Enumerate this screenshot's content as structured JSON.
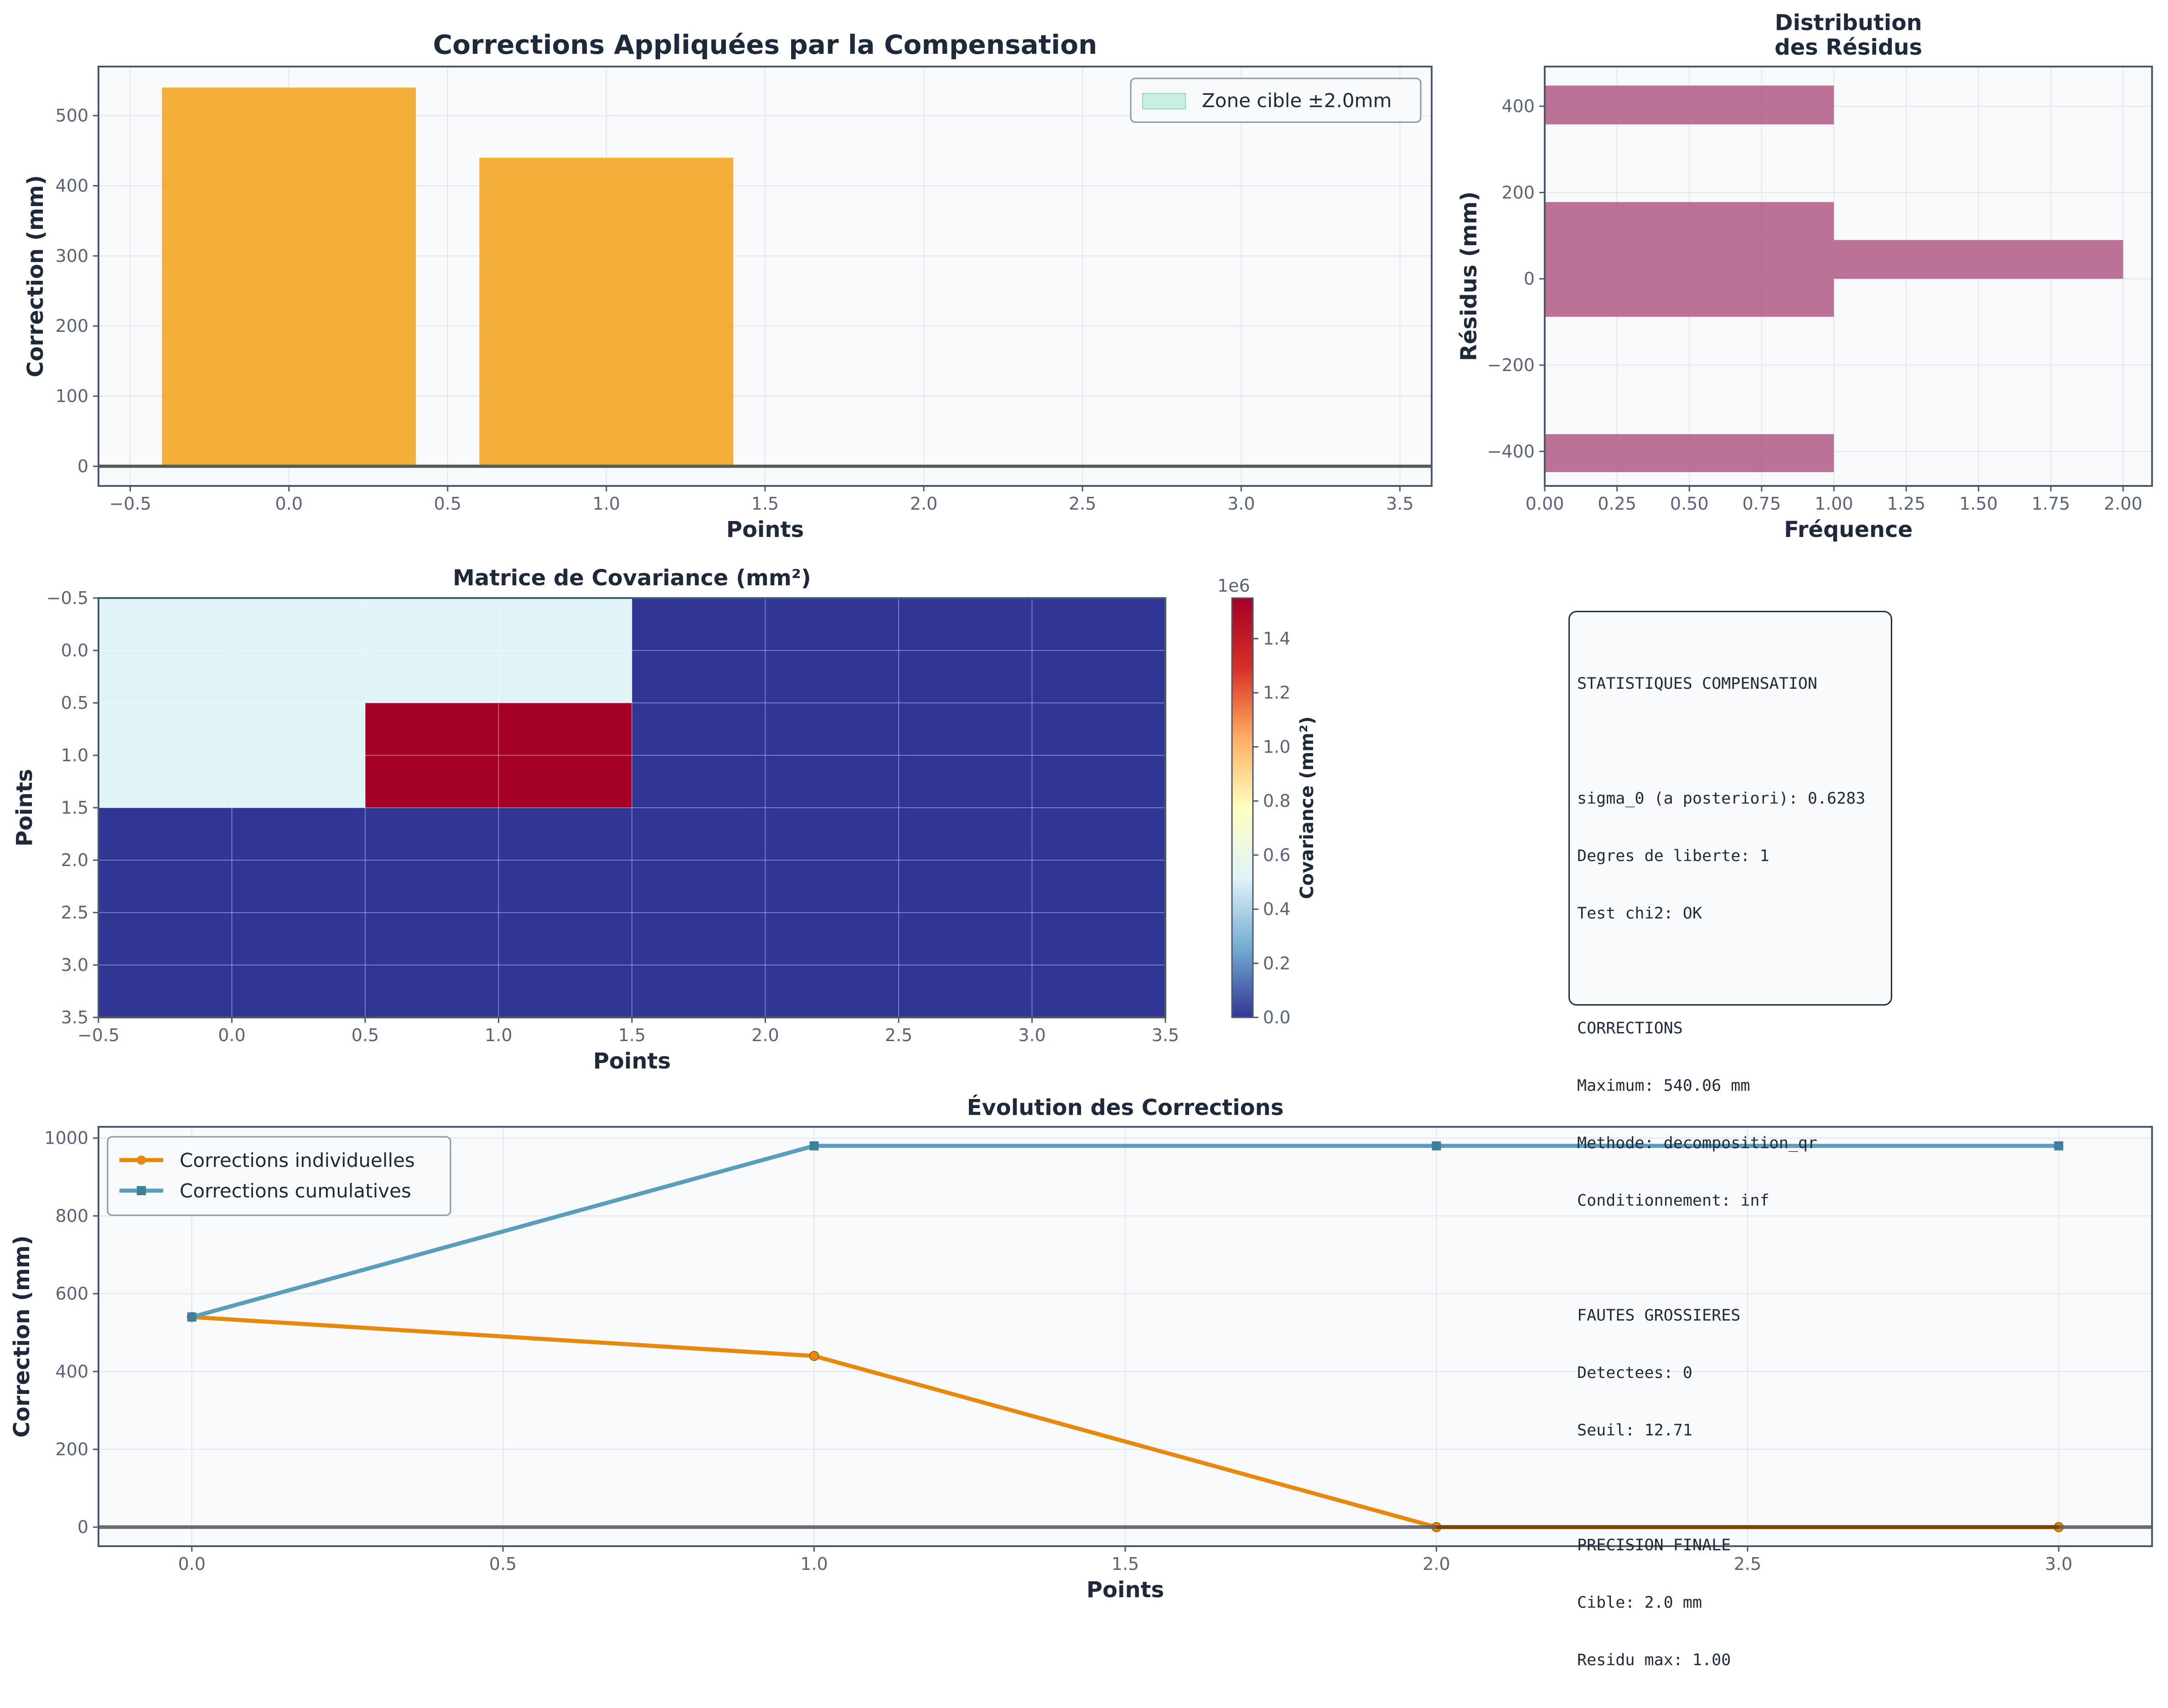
{
  "colors": {
    "bar": "#F3A625",
    "hist": "#B5638C",
    "indiv": "#E8890C",
    "cumul": "#5B9EBC",
    "cmap": [
      "#313695",
      "#74add1",
      "#e0f3f8",
      "#ffffbf",
      "#fdae61",
      "#d73027",
      "#a50026"
    ],
    "zone": "#c9efe1",
    "axes_bg": "#f8fafc",
    "spine": "#4a5a6e"
  },
  "chart_data": [
    {
      "id": "corrections",
      "type": "bar",
      "title": "Corrections Appliquées par la Compensation",
      "xlabel": "Points",
      "ylabel": "Correction (mm)",
      "x": [
        0,
        1,
        2,
        3
      ],
      "values": [
        540.06,
        440.0,
        0.0,
        0.0
      ],
      "xlim": [
        -0.6,
        3.6
      ],
      "ylim": [
        -28,
        570
      ],
      "xticks": [
        -0.5,
        0.0,
        0.5,
        1.0,
        1.5,
        2.0,
        2.5,
        3.0,
        3.5
      ],
      "xtick_labels": [
        "−0.5",
        "0.0",
        "0.5",
        "1.0",
        "1.5",
        "2.0",
        "2.5",
        "3.0",
        "3.5"
      ],
      "yticks": [
        0,
        100,
        200,
        300,
        400,
        500
      ],
      "ytick_labels": [
        "0",
        "100",
        "200",
        "300",
        "400",
        "500"
      ],
      "zone": [
        -2.0,
        2.0
      ],
      "legend": [
        "Zone cible ±2.0mm"
      ],
      "legend_loc": "top-right",
      "grid": true
    },
    {
      "id": "residus",
      "type": "bar",
      "orientation": "horizontal",
      "title": [
        "Distribution",
        "des Résidus"
      ],
      "xlabel": "Fréquence",
      "ylabel": "Résidus (mm)",
      "bins": [
        {
          "from": -448,
          "to": -360,
          "count": 1
        },
        {
          "from": -88,
          "to": 0,
          "count": 1
        },
        {
          "from": 0,
          "to": 90,
          "count": 2
        },
        {
          "from": 90,
          "to": 178,
          "count": 1
        },
        {
          "from": 358,
          "to": 448,
          "count": 1
        }
      ],
      "xlim": [
        0,
        2.1
      ],
      "ylim": [
        -480,
        492
      ],
      "xticks": [
        0,
        0.25,
        0.5,
        0.75,
        1.0,
        1.25,
        1.5,
        1.75,
        2.0
      ],
      "xtick_labels": [
        "0.00",
        "0.25",
        "0.50",
        "0.75",
        "1.00",
        "1.25",
        "1.50",
        "1.75",
        "2.00"
      ],
      "yticks": [
        -400,
        -200,
        0,
        200,
        400
      ],
      "ytick_labels": [
        "−400",
        "−200",
        "0",
        "200",
        "400"
      ],
      "grid": true
    },
    {
      "id": "covariance",
      "type": "heatmap",
      "title": "Matrice de Covariance (mm²)",
      "xlabel": "Points",
      "ylabel": "Points",
      "matrix": [
        [
          520000,
          520000,
          0,
          0
        ],
        [
          520000,
          1550000,
          0,
          0
        ],
        [
          0,
          0,
          0,
          0
        ],
        [
          0,
          0,
          0,
          0
        ]
      ],
      "vmin": 0,
      "vmax": 1550000,
      "ticks": [
        -0.5,
        0.0,
        0.5,
        1.0,
        1.5,
        2.0,
        2.5,
        3.0,
        3.5
      ],
      "tick_labels": [
        "−0.5",
        "0.0",
        "0.5",
        "1.0",
        "1.5",
        "2.0",
        "2.5",
        "3.0",
        "3.5"
      ],
      "colorbar_label": "Covariance (mm²)",
      "colorbar_offset": "1e6",
      "colorbar_ticks": [
        0,
        0.2,
        0.4,
        0.6,
        0.8,
        1.0,
        1.2,
        1.4
      ],
      "colorbar_tick_labels": [
        "0.0",
        "0.2",
        "0.4",
        "0.6",
        "0.8",
        "1.0",
        "1.2",
        "1.4"
      ],
      "grid": true
    },
    {
      "id": "evolution",
      "type": "line",
      "title": "Évolution des Corrections",
      "xlabel": "Points",
      "ylabel": "Correction (mm)",
      "x": [
        0,
        1,
        2,
        3
      ],
      "series": [
        {
          "name": "Corrections individuelles",
          "values": [
            540.06,
            440.0,
            0.0,
            0.0
          ],
          "marker": "circle"
        },
        {
          "name": "Corrections cumulatives",
          "values": [
            540.06,
            980.06,
            980.06,
            980.06
          ],
          "marker": "square"
        }
      ],
      "xlim": [
        -0.15,
        3.15
      ],
      "ylim": [
        -49,
        1029
      ],
      "xticks": [
        0.0,
        0.5,
        1.0,
        1.5,
        2.0,
        2.5,
        3.0
      ],
      "xtick_labels": [
        "0.0",
        "0.5",
        "1.0",
        "1.5",
        "2.0",
        "2.5",
        "3.0"
      ],
      "yticks": [
        0,
        200,
        400,
        600,
        800,
        1000
      ],
      "ytick_labels": [
        "0",
        "200",
        "400",
        "600",
        "800",
        "1000"
      ],
      "legend_loc": "top-left",
      "grid": true
    }
  ],
  "stats": {
    "lines": [
      "STATISTIQUES COMPENSATION",
      "",
      "sigma_0 (a posteriori): 0.6283",
      "Degres de liberte: 1",
      "Test chi2: OK",
      "",
      "CORRECTIONS",
      "Maximum: 540.06 mm",
      "Methode: decomposition_qr",
      "Conditionnement: inf",
      "",
      "FAUTES GROSSIERES",
      "Detectees: 0",
      "Seuil: 12.71",
      "",
      "PRECISION FINALE",
      "Cible: 2.0 mm",
      "Residu max: 1.00"
    ]
  }
}
